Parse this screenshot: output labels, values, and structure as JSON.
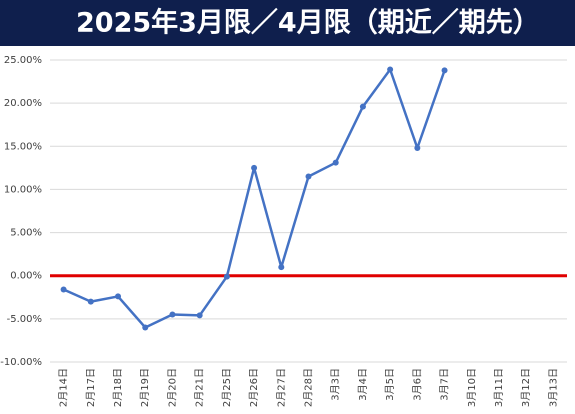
{
  "chart_data": {
    "type": "line",
    "title": "2025年3月限／4月限（期近／期先）",
    "categories": [
      "2月14日",
      "2月17日",
      "2月18日",
      "2月19日",
      "2月20日",
      "2月21日",
      "2月25日",
      "2月26日",
      "2月27日",
      "2月28日",
      "3月3日",
      "3月4日",
      "3月5日",
      "3月6日",
      "3月7日",
      "3月10日",
      "3月11日",
      "3月12日",
      "3月13日"
    ],
    "series": [
      {
        "color": "#4472c4",
        "values": [
          -1.6,
          -3.0,
          -2.4,
          -6.0,
          -4.5,
          -4.6,
          -0.1,
          12.5,
          1.0,
          11.5,
          13.1,
          19.6,
          23.9,
          14.8,
          23.8,
          null,
          null,
          null,
          null
        ]
      }
    ],
    "ylim": [
      -10,
      25
    ],
    "yticks": [
      {
        "value": -10,
        "label": "-10.00%"
      },
      {
        "value": -5,
        "label": "-5.00%"
      },
      {
        "value": 0,
        "label": "0.00%"
      },
      {
        "value": 5,
        "label": "5.00%"
      },
      {
        "value": 10,
        "label": "10.00%"
      },
      {
        "value": 15,
        "label": "15.00%"
      },
      {
        "value": 20,
        "label": "20.00%"
      },
      {
        "value": 25,
        "label": "25.00%"
      }
    ],
    "grid": true,
    "reference_line": {
      "value": 0,
      "color": "#e00000"
    }
  }
}
